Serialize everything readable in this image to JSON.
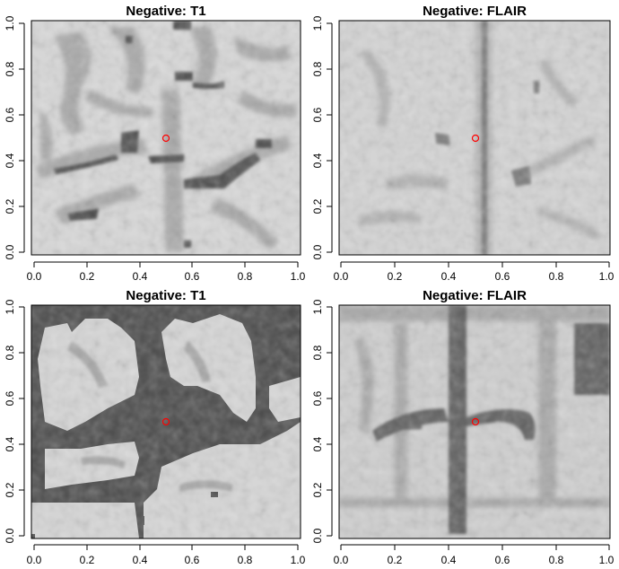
{
  "chart_data": [
    {
      "type": "heatmap",
      "title": "Negative: T1",
      "xlabel": "",
      "ylabel": "",
      "xlim": [
        0,
        1
      ],
      "ylim": [
        0,
        1
      ],
      "xticks": [
        "0.0",
        "0.2",
        "0.4",
        "0.6",
        "0.8",
        "1.0"
      ],
      "yticks": [
        "0.0",
        "0.2",
        "0.4",
        "0.6",
        "0.8",
        "1.0"
      ],
      "points": [
        {
          "x": 0.5,
          "y": 0.5,
          "color": "#ff0000",
          "shape": "open-circle"
        }
      ],
      "image": "T1 MRI brain slice, light gray tissue with darker gray sulci and a dark cross-shaped fissure near center"
    },
    {
      "type": "heatmap",
      "title": "Negative: FLAIR",
      "xlabel": "",
      "ylabel": "",
      "xlim": [
        0,
        1
      ],
      "ylim": [
        0,
        1
      ],
      "xticks": [
        "0.0",
        "0.2",
        "0.4",
        "0.6",
        "0.8",
        "1.0"
      ],
      "yticks": [
        "0.0",
        "0.2",
        "0.4",
        "0.6",
        "0.8",
        "1.0"
      ],
      "points": [
        {
          "x": 0.5,
          "y": 0.5,
          "color": "#ff0000",
          "shape": "open-circle"
        }
      ],
      "image": "FLAIR MRI brain slice, low-contrast gray texture with faint vertical midline"
    },
    {
      "type": "heatmap",
      "title": "Negative: T1",
      "xlabel": "",
      "ylabel": "",
      "xlim": [
        0,
        1
      ],
      "ylim": [
        0,
        1
      ],
      "xticks": [
        "0.0",
        "0.2",
        "0.4",
        "0.6",
        "0.8",
        "1.0"
      ],
      "yticks": [
        "0.0",
        "0.2",
        "0.4",
        "0.6",
        "0.8",
        "1.0"
      ],
      "points": [
        {
          "x": 0.5,
          "y": 0.5,
          "color": "#ff0000",
          "shape": "open-circle"
        }
      ],
      "image": "T1 MRI brain slice, dark background outside brain with light gray lobes and dark central fissure"
    },
    {
      "type": "heatmap",
      "title": "Negative: FLAIR",
      "xlabel": "",
      "ylabel": "",
      "xlim": [
        0,
        1
      ],
      "ylim": [
        0,
        1
      ],
      "xticks": [
        "0.0",
        "0.2",
        "0.4",
        "0.6",
        "0.8",
        "1.0"
      ],
      "yticks": [
        "0.0",
        "0.2",
        "0.4",
        "0.6",
        "0.8",
        "1.0"
      ],
      "points": [
        {
          "x": 0.5,
          "y": 0.5,
          "color": "#ff0000",
          "shape": "open-circle"
        }
      ],
      "image": "FLAIR MRI brain slice, gray tissue with dark vertical midline and dark horizontal branching band"
    }
  ],
  "colors": {
    "marker": "#ff0000",
    "t1_dark": "#4a4a4a",
    "t1_mid": "#a9a9a9",
    "t1_light": "#dcdcdc",
    "flair_light": "#d6d6d6",
    "flair_mid": "#b4b4b4",
    "flair_dark": "#6a6a6a"
  }
}
